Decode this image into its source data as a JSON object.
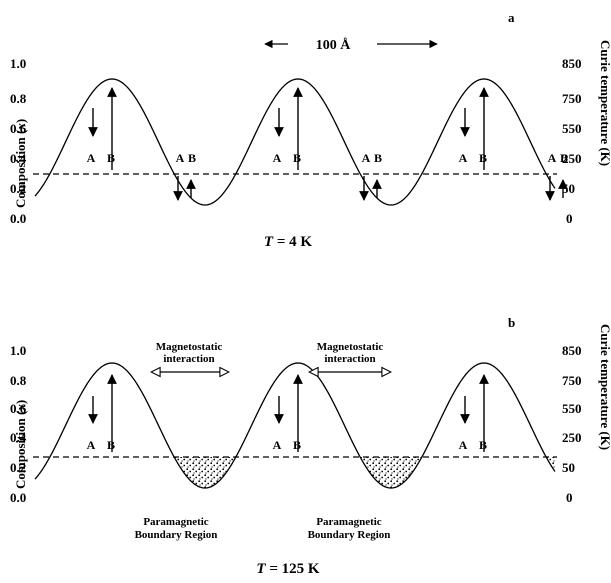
{
  "panels": [
    {
      "label": "a",
      "scale_bar": "100 Å",
      "caption_var": "T",
      "caption_rest": " = 4 K",
      "left_ticks": [
        "1.0",
        "0.8",
        "0.6",
        "0.4",
        "0.2",
        "0.0"
      ],
      "right_ticks": [
        "850",
        "750",
        "550",
        "250",
        "50",
        "0"
      ],
      "left_axis_label": {
        "main": "Composition (",
        "var": "x",
        "end": ")"
      },
      "right_axis_label": "Curie temperature (K)",
      "site_labels": [
        "A",
        "B"
      ]
    },
    {
      "label": "b",
      "caption_var": "T",
      "caption_rest": " = 125 K",
      "left_ticks": [
        "1.0",
        "0.8",
        "0.6",
        "0.4",
        "0.2",
        "0.0"
      ],
      "right_ticks": [
        "850",
        "750",
        "550",
        "250",
        "50",
        "0"
      ],
      "left_axis_label": {
        "main": "Composition (",
        "var": "x",
        "end": ")"
      },
      "right_axis_label": "Curie temperature (K)",
      "site_labels": [
        "A",
        "B"
      ],
      "interaction_label": [
        "Magnetostatic",
        "interaction"
      ],
      "boundary_label": [
        "Paramagnetic",
        "Boundary Region"
      ]
    }
  ]
}
